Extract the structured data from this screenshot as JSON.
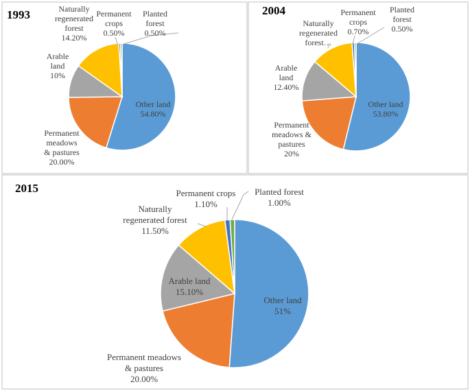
{
  "chart_data": [
    {
      "type": "pie",
      "title": "1993",
      "series": [
        {
          "name": "Other land",
          "value": 54.8,
          "label_lines": [
            "Other land",
            "54.80%"
          ]
        },
        {
          "name": "Permanent meadows & pastures",
          "value": 20.0,
          "label_lines": [
            "Permanent",
            "meadows",
            "& pastures",
            "20.00%"
          ]
        },
        {
          "name": "Arable land",
          "value": 10.0,
          "label_lines": [
            "Arable",
            "land",
            "10%"
          ]
        },
        {
          "name": "Naturally regenerated forest",
          "value": 14.2,
          "label_lines": [
            "Naturally",
            "regenerated",
            "forest",
            "14.20%"
          ]
        },
        {
          "name": "Permanent crops",
          "value": 0.5,
          "label_lines": [
            "Permanent",
            "crops",
            "0.50%"
          ]
        },
        {
          "name": "Planted forest",
          "value": 0.5,
          "label_lines": [
            "Planted",
            "forest",
            "0.50%"
          ]
        }
      ]
    },
    {
      "type": "pie",
      "title": "2004",
      "series": [
        {
          "name": "Other land",
          "value": 53.8,
          "label_lines": [
            "Other land",
            "53.80%"
          ]
        },
        {
          "name": "Permanent meadows & pastures",
          "value": 20.0,
          "label_lines": [
            "Permanent",
            "meadows &",
            "pastures",
            "20%"
          ]
        },
        {
          "name": "Arable land",
          "value": 12.4,
          "label_lines": [
            "Arable",
            "land",
            "12.40%"
          ]
        },
        {
          "name": "Naturally regenerated forest",
          "value": 12.6,
          "label_lines": [
            "Naturally",
            "regenerated",
            "forest…"
          ]
        },
        {
          "name": "Permanent crops",
          "value": 0.7,
          "label_lines": [
            "Permanent",
            "crops",
            "0.70%"
          ]
        },
        {
          "name": "Planted forest",
          "value": 0.5,
          "label_lines": [
            "Planted",
            "forest",
            "0.50%"
          ]
        }
      ]
    },
    {
      "type": "pie",
      "title": "2015",
      "series": [
        {
          "name": "Other land",
          "value": 51.0,
          "label_lines": [
            "Other land",
            "51%"
          ]
        },
        {
          "name": "Permanent meadows & pastures",
          "value": 20.0,
          "label_lines": [
            "Permanent meadows",
            "& pastures",
            "20.00%"
          ]
        },
        {
          "name": "Arable land",
          "value": 15.1,
          "label_lines": [
            "Arable land",
            "15.10%"
          ]
        },
        {
          "name": "Naturally regenerated forest",
          "value": 11.5,
          "label_lines": [
            "Naturally",
            "regenerated forest",
            "11.50%"
          ]
        },
        {
          "name": "Permanent crops",
          "value": 1.1,
          "label_lines": [
            "Permanent crops",
            "1.10%"
          ]
        },
        {
          "name": "Planted forest",
          "value": 1.0,
          "label_lines": [
            "Planted forest",
            "1.00%"
          ]
        }
      ]
    }
  ],
  "colors": {
    "Other land": "#5B9BD5",
    "Permanent meadows & pastures": "#ED7D31",
    "Arable land": "#A5A5A5",
    "Naturally regenerated forest": "#FFC000",
    "Permanent crops": "#4472C4",
    "Planted forest": "#70AD47",
    "panel_border": "#BFBFBF",
    "leader": "#A6A6A6"
  }
}
